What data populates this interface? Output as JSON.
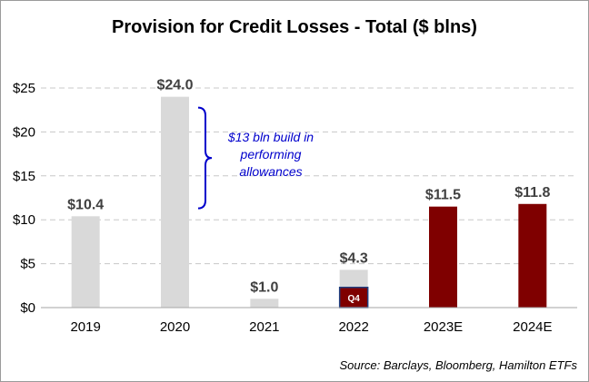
{
  "chart_data": {
    "type": "bar",
    "title": "Provision for Credit Losses - Total ($ blns)",
    "categories": [
      "2019",
      "2020",
      "2021",
      "2022",
      "2023E",
      "2024E"
    ],
    "values": [
      10.4,
      24.0,
      1.0,
      4.3,
      11.5,
      11.8
    ],
    "value_labels": [
      "$10.4",
      "$24.0",
      "$1.0",
      "$4.3",
      "$11.5",
      "$11.8"
    ],
    "bar_colors": [
      "#d9d9d9",
      "#d9d9d9",
      "#d9d9d9",
      "#d9d9d9",
      "#7f0000",
      "#7f0000"
    ],
    "ylim": [
      0,
      25
    ],
    "yticks": [
      0,
      5,
      10,
      15,
      20,
      25
    ],
    "ytick_labels": [
      "$0",
      "$5",
      "$10",
      "$15",
      "$20",
      "$25"
    ],
    "grid": true,
    "highlight": {
      "category": "2022",
      "label": "Q4",
      "value": 2.3,
      "color": "#7f0000",
      "border": "#1f3f7f"
    },
    "annotation": {
      "category": "2020",
      "range": [
        11.3,
        24.0
      ],
      "lines": [
        "$13 bln build in",
        "performing",
        "allowances"
      ],
      "color": "#0000cc"
    },
    "source": "Source: Barclays, Bloomberg, Hamilton ETFs"
  }
}
